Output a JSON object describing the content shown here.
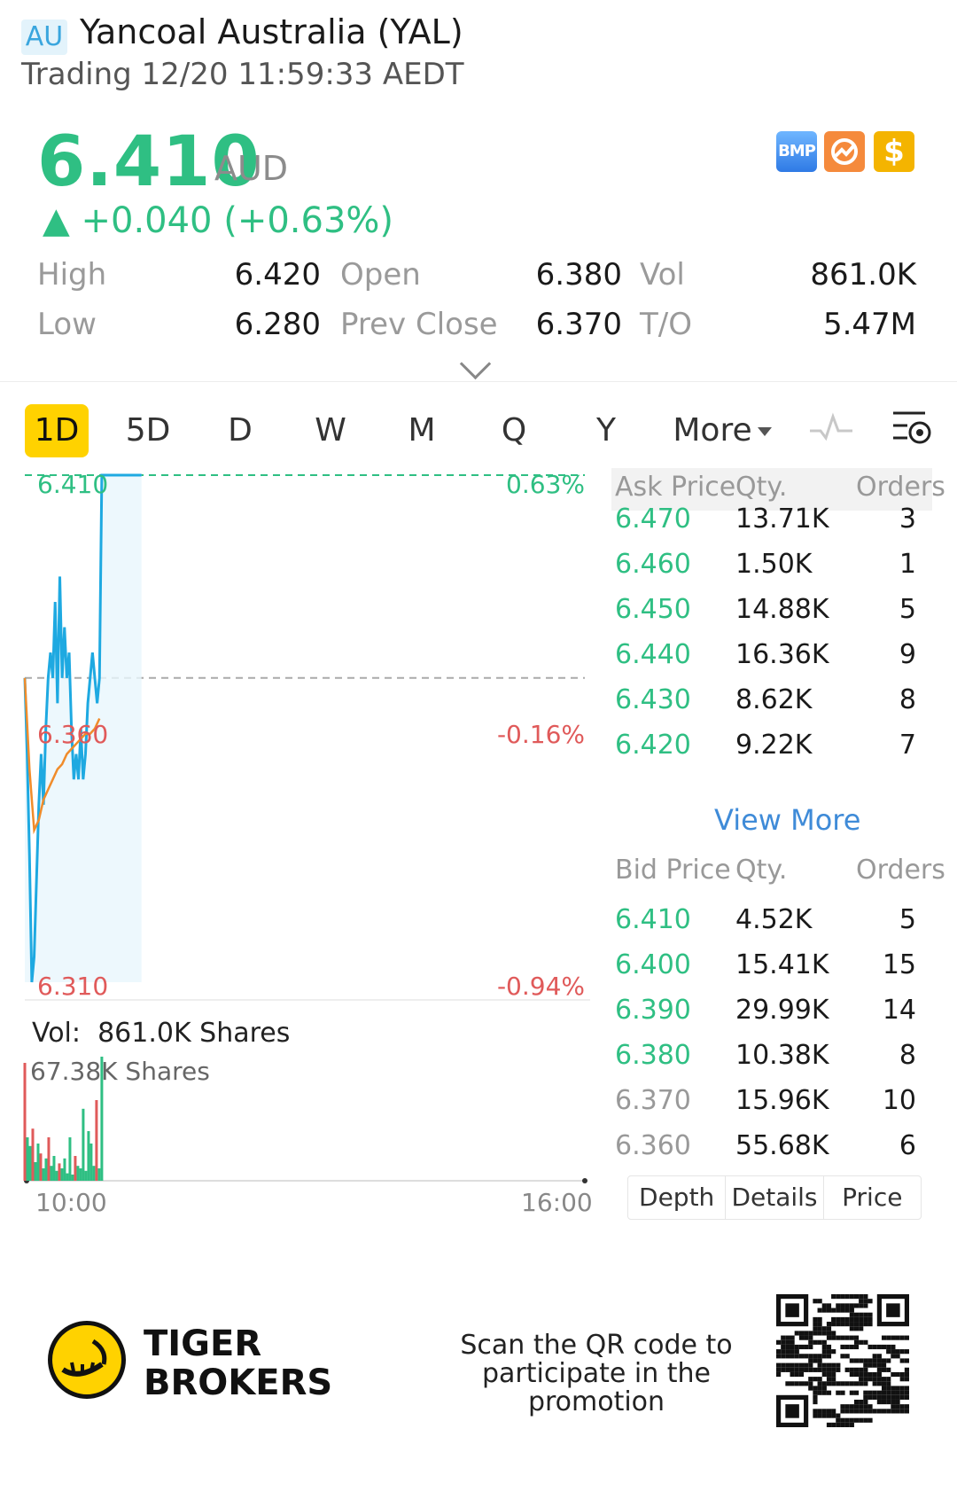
{
  "header": {
    "market_badge": "AU",
    "title": "Yancoal Australia (YAL)",
    "status": "Trading 12/20 11:59:33 AEDT"
  },
  "quote": {
    "price": "6.410",
    "currency": "AUD",
    "change": "▲ +0.040 (+0.63%)",
    "price_color": "#2fbf83"
  },
  "badges": [
    {
      "icon": "bmp-icon",
      "text": "BMP"
    },
    {
      "icon": "broker-icon"
    },
    {
      "icon": "dollar-icon",
      "text": "$"
    }
  ],
  "stats": {
    "high_label": "High",
    "high": "6.420",
    "low_label": "Low",
    "low": "6.280",
    "open_label": "Open",
    "open": "6.380",
    "prev_close_label": "Prev Close",
    "prev_close": "6.370",
    "vol_label": "Vol",
    "vol": "861.0K",
    "to_label": "T/O",
    "to": "5.47M"
  },
  "tabs": [
    "1D",
    "5D",
    "D",
    "W",
    "M",
    "Q",
    "Y",
    "More"
  ],
  "active_tab": "1D",
  "chart_data": {
    "type": "line",
    "series": [
      {
        "name": "",
        "color": "#1ea9e1",
        "x": [
          0,
          1,
          2,
          3,
          4,
          5,
          6,
          7,
          8,
          9,
          10,
          11,
          12,
          13,
          14,
          15,
          16,
          17,
          18,
          19,
          20,
          21,
          22,
          23,
          24,
          25,
          26,
          27,
          28,
          29,
          30,
          31,
          32,
          33,
          34,
          35,
          36,
          37,
          38,
          39,
          40,
          41,
          42,
          43,
          44,
          45,
          46,
          47,
          48,
          49,
          50
        ],
        "y": [
          6.37,
          6.355,
          6.335,
          6.31,
          6.315,
          6.33,
          6.345,
          6.355,
          6.345,
          6.36,
          6.37,
          6.375,
          6.37,
          6.385,
          6.365,
          6.39,
          6.37,
          6.38,
          6.37,
          6.375,
          6.36,
          6.35,
          6.355,
          6.35,
          6.36,
          6.35,
          6.355,
          6.365,
          6.37,
          6.375,
          6.37,
          6.365,
          6.37,
          6.41,
          6.41,
          6.41,
          6.41,
          6.41,
          6.41,
          6.41,
          6.41,
          6.41,
          6.41,
          6.41,
          6.41,
          6.41,
          6.41,
          6.41,
          6.41,
          6.41,
          6.41
        ]
      },
      {
        "name": "",
        "color": "#f08c2b",
        "x": [
          0,
          2,
          4,
          6,
          8,
          10,
          12,
          14,
          16,
          18,
          20,
          22,
          24,
          26,
          28,
          30,
          32
        ],
        "y": [
          6.37,
          6.352,
          6.34,
          6.342,
          6.346,
          6.348,
          6.35,
          6.352,
          6.353,
          6.355,
          6.356,
          6.357,
          6.358,
          6.359,
          6.359,
          6.36,
          6.362
        ]
      }
    ],
    "y_labels_left": [
      "6.410",
      "6.360",
      "6.310"
    ],
    "y_labels_right": [
      "0.63%",
      "-0.16%",
      "-0.94%"
    ],
    "ylim": [
      6.31,
      6.41
    ],
    "prev_close": 6.37,
    "x_labels": [
      "10:00",
      "16:00"
    ],
    "volume_label": "Vol:",
    "volume_total": "861.0K Shares",
    "volume_max_label": "67.38K Shares",
    "volume_bars": [
      {
        "v": 0.95,
        "c": "#e05a5a"
      },
      {
        "v": 0.35,
        "c": "#2fbf83"
      },
      {
        "v": 0.28,
        "c": "#2fbf83"
      },
      {
        "v": 0.42,
        "c": "#e05a5a"
      },
      {
        "v": 0.15,
        "c": "#2fbf83"
      },
      {
        "v": 0.3,
        "c": "#2fbf83"
      },
      {
        "v": 0.22,
        "c": "#e05a5a"
      },
      {
        "v": 0.1,
        "c": "#2fbf83"
      },
      {
        "v": 0.18,
        "c": "#2fbf83"
      },
      {
        "v": 0.35,
        "c": "#e05a5a"
      },
      {
        "v": 0.12,
        "c": "#2fbf83"
      },
      {
        "v": 0.2,
        "c": "#2fbf83"
      },
      {
        "v": 0.08,
        "c": "#2fbf83"
      },
      {
        "v": 0.14,
        "c": "#e05a5a"
      },
      {
        "v": 0.1,
        "c": "#2fbf83"
      },
      {
        "v": 0.18,
        "c": "#2fbf83"
      },
      {
        "v": 0.06,
        "c": "#2fbf83"
      },
      {
        "v": 0.35,
        "c": "#2fbf83"
      },
      {
        "v": 0.05,
        "c": "#2fbf83"
      },
      {
        "v": 0.2,
        "c": "#e05a5a"
      },
      {
        "v": 0.12,
        "c": "#2fbf83"
      },
      {
        "v": 0.1,
        "c": "#2fbf83"
      },
      {
        "v": 0.58,
        "c": "#2fbf83"
      },
      {
        "v": 0.08,
        "c": "#2fbf83"
      },
      {
        "v": 0.4,
        "c": "#2fbf83"
      },
      {
        "v": 0.3,
        "c": "#2fbf83"
      },
      {
        "v": 0.12,
        "c": "#2fbf83"
      },
      {
        "v": 0.65,
        "c": "#e05a5a"
      },
      {
        "v": 0.1,
        "c": "#2fbf83"
      },
      {
        "v": 1.0,
        "c": "#2fbf83"
      }
    ]
  },
  "order_book": {
    "ask_headers": {
      "price": "Ask Price",
      "qty": "Qty.",
      "orders": "Orders"
    },
    "asks": [
      {
        "price": "6.470",
        "qty": "13.71K",
        "orders": "3"
      },
      {
        "price": "6.460",
        "qty": "1.50K",
        "orders": "1"
      },
      {
        "price": "6.450",
        "qty": "14.88K",
        "orders": "5"
      },
      {
        "price": "6.440",
        "qty": "16.36K",
        "orders": "9"
      },
      {
        "price": "6.430",
        "qty": "8.62K",
        "orders": "8"
      },
      {
        "price": "6.420",
        "qty": "9.22K",
        "orders": "7"
      }
    ],
    "view_more": "View More",
    "bid_headers": {
      "price": "Bid Price",
      "qty": "Qty.",
      "orders": "Orders"
    },
    "bids": [
      {
        "price": "6.410",
        "qty": "4.52K",
        "orders": "5"
      },
      {
        "price": "6.400",
        "qty": "15.41K",
        "orders": "15"
      },
      {
        "price": "6.390",
        "qty": "29.99K",
        "orders": "14"
      },
      {
        "price": "6.380",
        "qty": "10.38K",
        "orders": "8"
      },
      {
        "price": "6.370",
        "qty": "15.96K",
        "orders": "10"
      },
      {
        "price": "6.360",
        "qty": "55.68K",
        "orders": "6"
      }
    ],
    "bottom_tabs": [
      "Depth",
      "Details",
      "Price"
    ]
  },
  "footer": {
    "brand_line1": "TIGER",
    "brand_line2": "BROKERS",
    "scan_line1": "Scan the QR code to",
    "scan_line2": "participate in the promotion"
  }
}
